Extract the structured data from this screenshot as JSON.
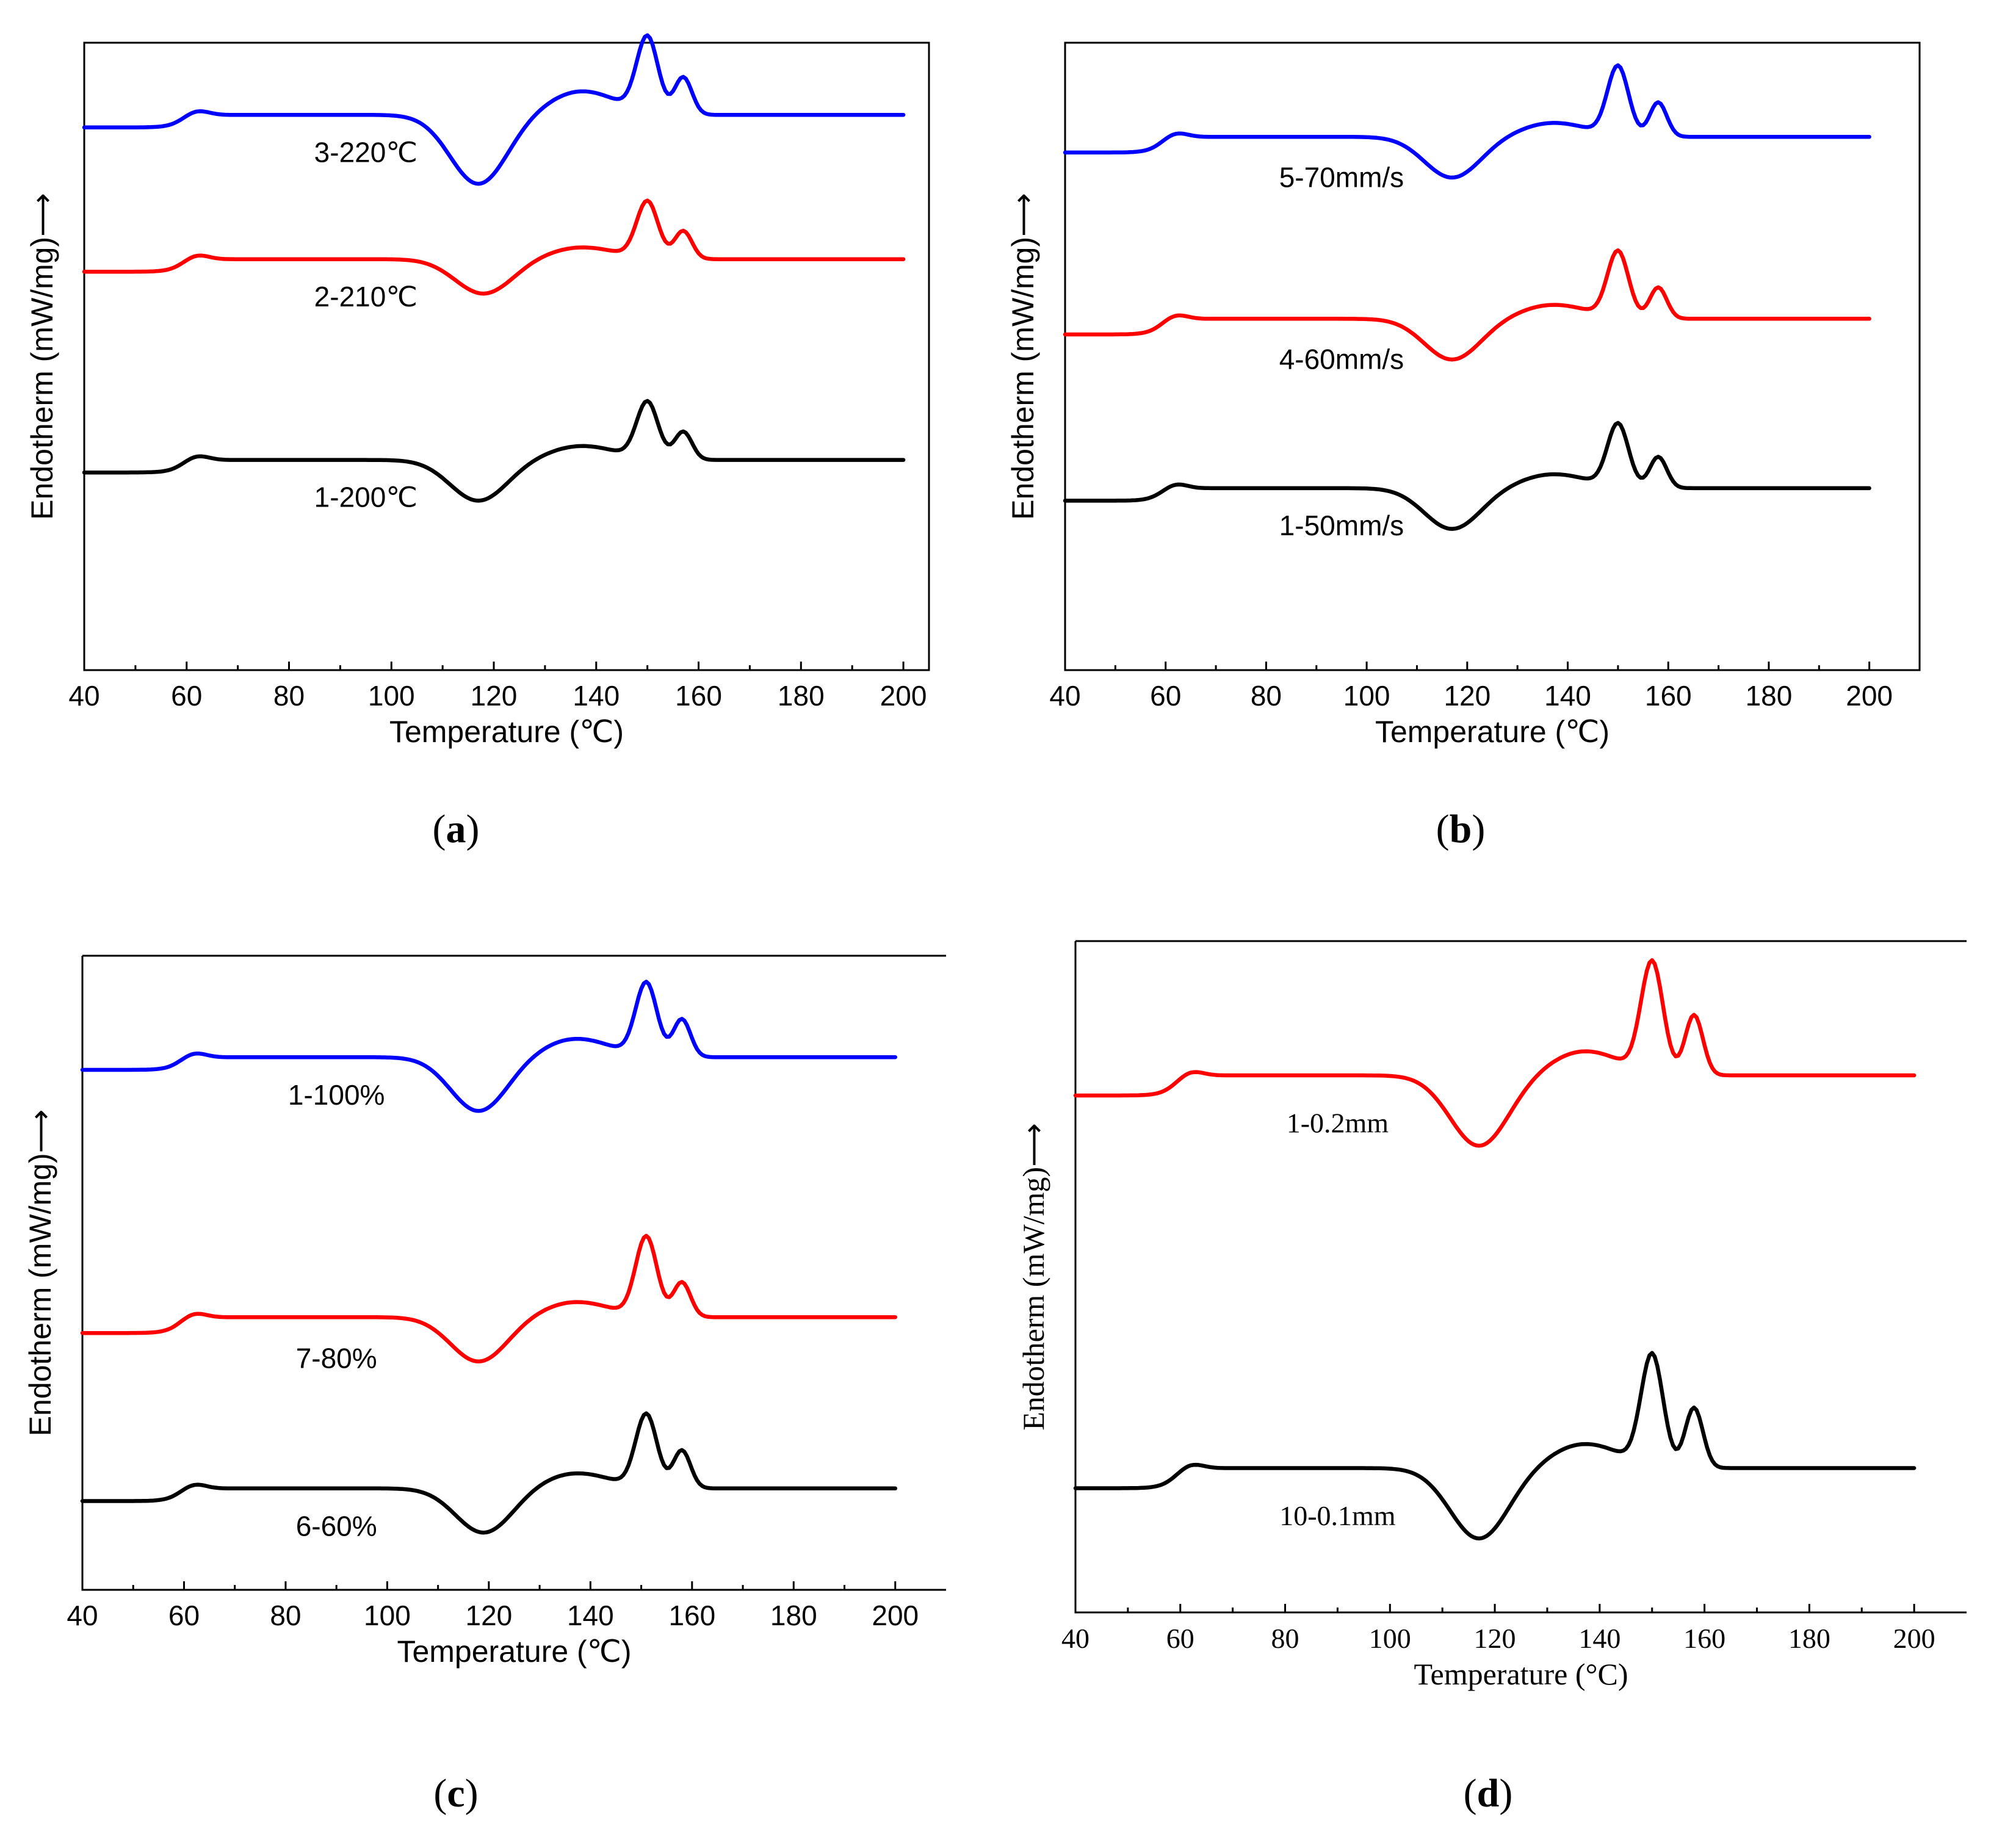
{
  "figure": {
    "panels": [
      {
        "id": "a",
        "panel_label": "a",
        "xlabel": "Temperature (℃)",
        "ylabel": "Endotherm (mW/mg)⟶",
        "x_ticks": [
          "40",
          "60",
          "80",
          "100",
          "120",
          "140",
          "160",
          "180",
          "200"
        ],
        "font": "sans",
        "curves": [
          {
            "label": "3-220℃",
            "color": "#0000ff",
            "baseline_left": 0.865,
            "baseline_right": 0.885,
            "peak1": 0.12,
            "peak2": 0.06,
            "dip": 0.11
          },
          {
            "label": "2-210℃",
            "color": "#ff0000",
            "baseline_left": 0.635,
            "baseline_right": 0.655,
            "peak1": 0.09,
            "peak2": 0.045,
            "dip": 0.055
          },
          {
            "label": "1-200℃",
            "color": "#000000",
            "baseline_left": 0.315,
            "baseline_right": 0.335,
            "peak1": 0.09,
            "peak2": 0.045,
            "dip": 0.065
          }
        ]
      },
      {
        "id": "b",
        "panel_label": "b",
        "xlabel": "Temperature (℃)",
        "ylabel": "Endotherm (mW/mg)⟶",
        "x_ticks": [
          "40",
          "60",
          "80",
          "100",
          "120",
          "140",
          "160",
          "180",
          "200"
        ],
        "font": "sans",
        "curves": [
          {
            "label": "5-70mm/s",
            "color": "#0000ff",
            "baseline_left": 0.825,
            "baseline_right": 0.85,
            "peak1": 0.11,
            "peak2": 0.055,
            "dip": 0.065
          },
          {
            "label": "4-60mm/s",
            "color": "#ff0000",
            "baseline_left": 0.535,
            "baseline_right": 0.56,
            "peak1": 0.105,
            "peak2": 0.05,
            "dip": 0.065
          },
          {
            "label": "1-50mm/s",
            "color": "#000000",
            "baseline_left": 0.27,
            "baseline_right": 0.29,
            "peak1": 0.1,
            "peak2": 0.05,
            "dip": 0.065
          }
        ]
      },
      {
        "id": "c",
        "panel_label": "c",
        "xlabel": "Temperature (℃)",
        "ylabel": "Endotherm (mW/mg)⟶",
        "x_ticks": [
          "40",
          "60",
          "80",
          "100",
          "120",
          "140",
          "160",
          "180",
          "200"
        ],
        "font": "sans",
        "curves": [
          {
            "label": "1-100%",
            "color": "#0000ff",
            "baseline_left": 0.82,
            "baseline_right": 0.84,
            "peak1": 0.115,
            "peak2": 0.06,
            "dip": 0.085
          },
          {
            "label": "7-80%",
            "color": "#ff0000",
            "baseline_left": 0.405,
            "baseline_right": 0.43,
            "peak1": 0.125,
            "peak2": 0.055,
            "dip": 0.07
          },
          {
            "label": "6-60%",
            "color": "#000000",
            "baseline_left": 0.14,
            "baseline_right": 0.16,
            "peak1": 0.115,
            "peak2": 0.06,
            "dip": 0.07
          }
        ]
      },
      {
        "id": "d",
        "panel_label": "d",
        "xlabel": "Temperature (°C)",
        "ylabel": "Endotherm (mW/mg)⟶",
        "x_ticks": [
          "40",
          "60",
          "80",
          "100",
          "120",
          "140",
          "160",
          "180",
          "200"
        ],
        "font": "serif",
        "curves": [
          {
            "label": "1-0.2mm",
            "color": "#ff0000",
            "baseline_left": 0.77,
            "baseline_right": 0.8,
            "peak1": 0.165,
            "peak2": 0.09,
            "dip": 0.105
          },
          {
            "label": "10-0.1mm",
            "color": "#000000",
            "baseline_left": 0.185,
            "baseline_right": 0.215,
            "peak1": 0.165,
            "peak2": 0.09,
            "dip": 0.105
          }
        ]
      }
    ]
  },
  "chart_data": [
    {
      "type": "line",
      "panel": "a",
      "xlabel": "Temperature (℃)",
      "ylabel": "Endotherm (mW/mg)⟶",
      "xlim": [
        40,
        205
      ],
      "x_ticks": [
        40,
        60,
        80,
        100,
        120,
        140,
        160,
        180,
        200
      ],
      "series": [
        {
          "name": "3-220℃",
          "features": {
            "glass_transition_C": 62,
            "cold_crystallization_min_C": 117,
            "melting_peak1_C": 150,
            "melting_peak2_C": 157
          }
        },
        {
          "name": "2-210℃",
          "features": {
            "glass_transition_C": 62,
            "cold_crystallization_min_C": 118,
            "melting_peak1_C": 150,
            "melting_peak2_C": 157
          }
        },
        {
          "name": "1-200℃",
          "features": {
            "glass_transition_C": 62,
            "cold_crystallization_min_C": 117,
            "melting_peak1_C": 150,
            "melting_peak2_C": 157
          }
        }
      ]
    },
    {
      "type": "line",
      "panel": "b",
      "xlabel": "Temperature (℃)",
      "ylabel": "Endotherm (mW/mg)⟶",
      "xlim": [
        40,
        210
      ],
      "x_ticks": [
        40,
        60,
        80,
        100,
        120,
        140,
        160,
        180,
        200
      ],
      "series": [
        {
          "name": "5-70mm/s",
          "features": {
            "glass_transition_C": 62,
            "cold_crystallization_min_C": 117,
            "melting_peak1_C": 150,
            "melting_peak2_C": 158
          }
        },
        {
          "name": "4-60mm/s",
          "features": {
            "glass_transition_C": 62,
            "cold_crystallization_min_C": 117,
            "melting_peak1_C": 150,
            "melting_peak2_C": 158
          }
        },
        {
          "name": "1-50mm/s",
          "features": {
            "glass_transition_C": 62,
            "cold_crystallization_min_C": 117,
            "melting_peak1_C": 150,
            "melting_peak2_C": 158
          }
        }
      ]
    },
    {
      "type": "line",
      "panel": "c",
      "xlabel": "Temperature (℃)",
      "ylabel": "Endotherm (mW/mg)⟶",
      "xlim": [
        40,
        210
      ],
      "x_ticks": [
        40,
        60,
        80,
        100,
        120,
        140,
        160,
        180,
        200
      ],
      "series": [
        {
          "name": "1-100%",
          "features": {
            "glass_transition_C": 62,
            "cold_crystallization_min_C": 118,
            "melting_peak1_C": 151,
            "melting_peak2_C": 158
          }
        },
        {
          "name": "7-80%",
          "features": {
            "glass_transition_C": 62,
            "cold_crystallization_min_C": 118,
            "melting_peak1_C": 151,
            "melting_peak2_C": 158
          }
        },
        {
          "name": "6-60%",
          "features": {
            "glass_transition_C": 62,
            "cold_crystallization_min_C": 119,
            "melting_peak1_C": 151,
            "melting_peak2_C": 158
          }
        }
      ]
    },
    {
      "type": "line",
      "panel": "d",
      "xlabel": "Temperature (°C)",
      "ylabel": "Endotherm (mW/mg)⟶",
      "xlim": [
        40,
        210
      ],
      "x_ticks": [
        40,
        60,
        80,
        100,
        120,
        140,
        160,
        180,
        200
      ],
      "series": [
        {
          "name": "1-0.2mm",
          "features": {
            "glass_transition_C": 62,
            "cold_crystallization_min_C": 117,
            "melting_peak1_C": 150,
            "melting_peak2_C": 158
          }
        },
        {
          "name": "10-0.1mm",
          "features": {
            "glass_transition_C": 62,
            "cold_crystallization_min_C": 117,
            "melting_peak1_C": 150,
            "melting_peak2_C": 158
          }
        }
      ]
    }
  ]
}
